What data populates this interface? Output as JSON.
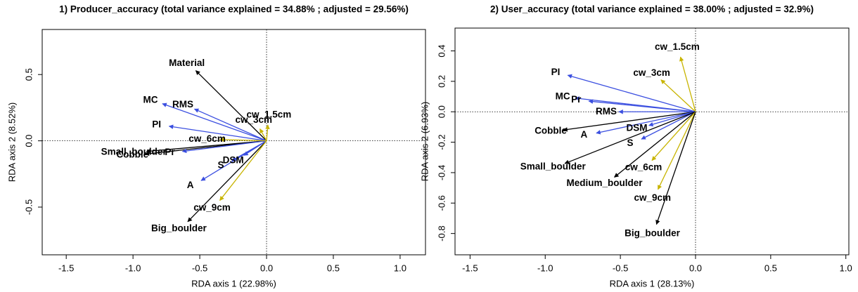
{
  "chart_data": [
    {
      "type": "biplot",
      "title": "1) Producer_accuracy (total variance explained = 34.88% ; adjusted = 29.56%)",
      "xlabel": "RDA axis 1 (22.98%)",
      "ylabel": "RDA axis 2 (8.52%)",
      "xlim": [
        -1.68,
        1.19
      ],
      "ylim": [
        -0.86,
        0.84
      ],
      "xticks": [
        -1.5,
        {
          "value": -1,
          "label": "-1.0"
        },
        -0.5,
        {
          "value": 0,
          "label": "0.0"
        },
        0.5,
        {
          "value": 1,
          "label": "1.0"
        }
      ],
      "yticks": [
        -0.5,
        {
          "value": 0,
          "label": "0.0"
        },
        0.5
      ],
      "arrows": [
        {
          "label": "Material",
          "x": -0.53,
          "y": 0.53,
          "color": "#000000"
        },
        {
          "label": "Small_boulder",
          "x": -0.9,
          "y": -0.08,
          "color": "#000000"
        },
        {
          "label": "Cobble",
          "x": -0.91,
          "y": -0.1,
          "color": "#000000"
        },
        {
          "label": "Big_boulder",
          "x": -0.59,
          "y": -0.61,
          "color": "#000000"
        },
        {
          "label": "MC",
          "x": -0.78,
          "y": 0.28,
          "color": "#3b4fe0"
        },
        {
          "label": "RMS",
          "x": -0.54,
          "y": 0.24,
          "color": "#3b4fe0"
        },
        {
          "label": "PI",
          "x": -0.73,
          "y": 0.11,
          "color": "#3b4fe0"
        },
        {
          "label": "Pr",
          "x": -0.63,
          "y": -0.08,
          "color": "#3b4fe0"
        },
        {
          "label": "A",
          "x": -0.49,
          "y": -0.3,
          "color": "#3b4fe0"
        },
        {
          "label": "S",
          "x": -0.26,
          "y": -0.15,
          "color": "#3b4fe0"
        },
        {
          "label": "DSM",
          "x": -0.17,
          "y": -0.11,
          "color": "#3b4fe0"
        },
        {
          "label": "cw_1.5cm",
          "x": 0.01,
          "y": 0.12,
          "color": "#c8b400"
        },
        {
          "label": "cw_3cm",
          "x": -0.05,
          "y": 0.09,
          "color": "#c8b400"
        },
        {
          "label": "cw_6cm",
          "x": -0.35,
          "y": 0.01,
          "color": "#c8b400"
        },
        {
          "label": "cw_9cm",
          "x": -0.35,
          "y": -0.45,
          "color": "#c8b400"
        }
      ]
    },
    {
      "type": "biplot",
      "title": "2) User_accuracy (total variance explained = 38.00% ; adjusted = 32.9%)",
      "xlabel": "RDA axis 1 (28.13%)",
      "ylabel": "RDA axis 2 (6.93%)",
      "xlim": [
        -1.6,
        1.02
      ],
      "ylim": [
        -0.94,
        0.55
      ],
      "xticks": [
        -1.5,
        {
          "value": -1,
          "label": "-1.0"
        },
        -0.5,
        {
          "value": 0,
          "label": "0.0"
        },
        0.5,
        {
          "value": 1,
          "label": "1.0"
        }
      ],
      "yticks": [
        -0.8,
        -0.6,
        -0.4,
        -0.2,
        {
          "value": 0,
          "label": "0.0"
        },
        0.2,
        0.4
      ],
      "arrows": [
        {
          "label": "cw_1.5cm",
          "x": -0.1,
          "y": 0.36,
          "color": "#c8b400"
        },
        {
          "label": "cw_3cm",
          "x": -0.23,
          "y": 0.21,
          "color": "#c8b400"
        },
        {
          "label": "PI",
          "x": -0.85,
          "y": 0.24,
          "color": "#3b4fe0"
        },
        {
          "label": "MC",
          "x": -0.8,
          "y": 0.09,
          "color": "#3b4fe0"
        },
        {
          "label": "Pr",
          "x": -0.71,
          "y": 0.07,
          "color": "#3b4fe0"
        },
        {
          "label": "RMS",
          "x": -0.51,
          "y": 0.0,
          "color": "#3b4fe0"
        },
        {
          "label": "Cobble",
          "x": -0.88,
          "y": -0.12,
          "color": "#000000"
        },
        {
          "label": "A",
          "x": -0.66,
          "y": -0.14,
          "color": "#3b4fe0"
        },
        {
          "label": "DSM",
          "x": -0.31,
          "y": -0.09,
          "color": "#3b4fe0"
        },
        {
          "label": "S",
          "x": -0.36,
          "y": -0.18,
          "color": "#3b4fe0"
        },
        {
          "label": "Small_boulder",
          "x": -0.87,
          "y": -0.34,
          "color": "#000000"
        },
        {
          "label": "Medium_boulder",
          "x": -0.54,
          "y": -0.43,
          "color": "#000000"
        },
        {
          "label": "cw_6cm",
          "x": -0.29,
          "y": -0.32,
          "color": "#c8b400"
        },
        {
          "label": "cw_9cm",
          "x": -0.25,
          "y": -0.51,
          "color": "#c8b400"
        },
        {
          "label": "Big_boulder",
          "x": -0.26,
          "y": -0.74,
          "color": "#000000"
        }
      ]
    }
  ]
}
